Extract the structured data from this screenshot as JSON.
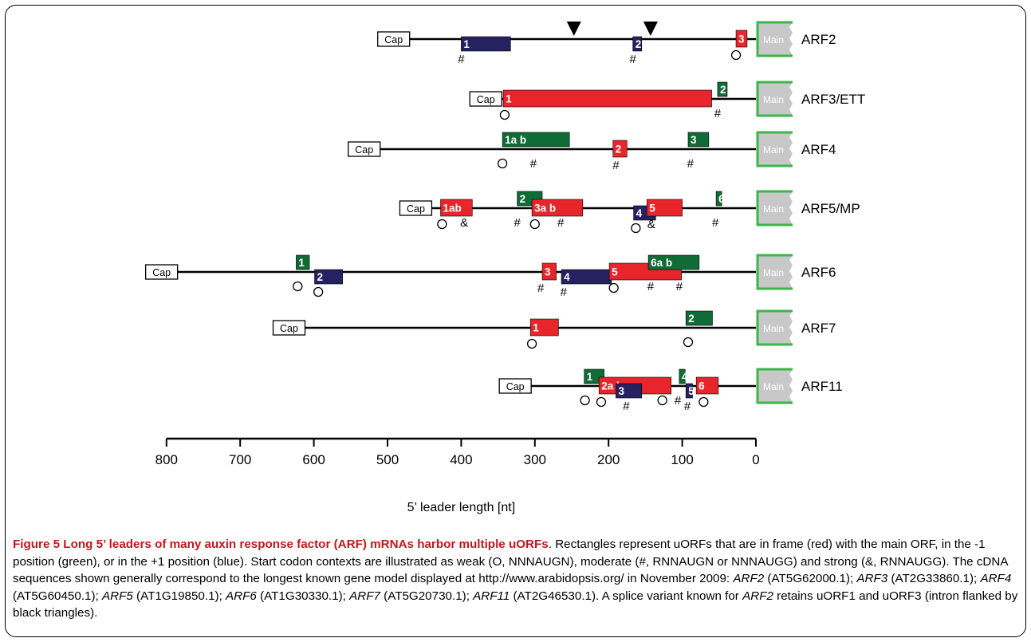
{
  "axis": {
    "ticks": [
      800,
      700,
      600,
      500,
      400,
      300,
      200,
      100,
      0
    ],
    "label": "5’ leader length [nt]",
    "range": [
      800,
      0
    ]
  },
  "cap_label": "Cap",
  "main_label": "Main",
  "colors": {
    "in_frame": "#e8252b",
    "minus1": "#106b36",
    "plus1": "#262262",
    "main_border": "#3db54a",
    "main_fill": "#c8c8c8"
  },
  "genes": [
    {
      "name": "ARF2",
      "cap": 470,
      "uorfs": [
        {
          "label": "1",
          "frame": "plus1",
          "start": 400,
          "end": 333,
          "sym": "#",
          "sym_pos": 400
        },
        {
          "label": "2",
          "frame": "plus1",
          "start": 167,
          "end": 155,
          "sym": "#",
          "sym_pos": 167
        },
        {
          "label": "3",
          "frame": "in",
          "start": 27,
          "end": 12,
          "sym": "O",
          "sym_pos": 27
        }
      ],
      "triangles": [
        247,
        143
      ]
    },
    {
      "name": "ARF3/ETT",
      "cap": 345,
      "uorfs": [
        {
          "label": "1",
          "frame": "in",
          "start": 343,
          "end": 60,
          "sym": "O",
          "sym_pos": 341
        },
        {
          "label": "2",
          "frame": "minus1",
          "start": 52,
          "end": 39,
          "sym": "#",
          "sym_pos": 52
        }
      ]
    },
    {
      "name": "ARF4",
      "cap": 510,
      "uorfs": [
        {
          "label": "1a   b",
          "frame": "minus1",
          "start": 344,
          "end": 253,
          "sym": "O",
          "sym_pos": 344
        },
        {
          "label": "2",
          "frame": "in",
          "start": 194,
          "end": 175,
          "sym": "#",
          "sym_pos": 190
        },
        {
          "label": "3",
          "frame": "minus1",
          "start": 92,
          "end": 64,
          "sym": "#",
          "sym_pos": 89
        }
      ],
      "extra_syms": [
        {
          "sym": "#",
          "pos": 302
        }
      ]
    },
    {
      "name": "ARF5/MP",
      "cap": 440,
      "uorfs": [
        {
          "label": "1ab",
          "frame": "in",
          "start": 428,
          "end": 385,
          "sym": "O",
          "sym_pos": 426
        },
        {
          "label": "2",
          "frame": "minus1",
          "start": 324,
          "end": 290,
          "sym": "#",
          "sym_pos": 324
        },
        {
          "label": "3a  b",
          "frame": "in",
          "start": 304,
          "end": 235,
          "sym": "O",
          "sym_pos": 300
        },
        {
          "label": "4",
          "frame": "plus1",
          "start": 166,
          "end": 136,
          "sym": "O",
          "sym_pos": 163
        },
        {
          "label": "5",
          "frame": "in",
          "start": 148,
          "end": 100,
          "sym": "&",
          "sym_pos": 142
        },
        {
          "label": "6",
          "frame": "minus1",
          "start": 54,
          "end": 47,
          "sym": "#",
          "sym_pos": 55
        }
      ],
      "extra_syms": [
        {
          "sym": "&",
          "pos": 396
        },
        {
          "sym": "#",
          "pos": 265
        }
      ]
    },
    {
      "name": "ARF6",
      "cap": 785,
      "uorfs": [
        {
          "label": "1",
          "frame": "minus1",
          "start": 624,
          "end": 606,
          "sym": "O",
          "sym_pos": 622
        },
        {
          "label": "2",
          "frame": "plus1",
          "start": 599,
          "end": 561,
          "sym": "O",
          "sym_pos": 594
        },
        {
          "label": "3",
          "frame": "in",
          "start": 290,
          "end": 271,
          "sym": "#",
          "sym_pos": 292
        },
        {
          "label": "4",
          "frame": "plus1",
          "start": 264,
          "end": 196,
          "sym": "#",
          "sym_pos": 261
        },
        {
          "label": "5",
          "frame": "in",
          "start": 199,
          "end": 101,
          "sym": "O",
          "sym_pos": 193
        },
        {
          "label": "6a   b",
          "frame": "minus1",
          "start": 146,
          "end": 77,
          "sym": "#",
          "sym_pos": 143
        }
      ],
      "extra_syms": [
        {
          "sym": "#",
          "pos": 104
        }
      ]
    },
    {
      "name": "ARF7",
      "cap": 612,
      "uorfs": [
        {
          "label": "1",
          "frame": "in",
          "start": 306,
          "end": 268,
          "sym": "O",
          "sym_pos": 304
        },
        {
          "label": "2",
          "frame": "minus1",
          "start": 95,
          "end": 59,
          "sym": "O",
          "sym_pos": 92
        }
      ]
    },
    {
      "name": "ARF11",
      "cap": 305,
      "uorfs": [
        {
          "label": "1",
          "frame": "minus1",
          "start": 233,
          "end": 206,
          "sym": "O",
          "sym_pos": 232
        },
        {
          "label": "2a             b",
          "frame": "in",
          "start": 213,
          "end": 115,
          "sym": "O",
          "sym_pos": 210
        },
        {
          "label": "3",
          "frame": "plus1",
          "start": 190,
          "end": 155,
          "sym": "#",
          "sym_pos": 176
        },
        {
          "label": "4",
          "frame": "minus1",
          "start": 104,
          "end": 96,
          "sym": "#",
          "sym_pos": 106
        },
        {
          "label": "5",
          "frame": "plus1",
          "start": 95,
          "end": 86,
          "sym": "#",
          "sym_pos": 93
        },
        {
          "label": "6",
          "frame": "in",
          "start": 81,
          "end": 51,
          "sym": "O",
          "sym_pos": 71
        }
      ],
      "extra_syms": [
        {
          "sym": "O",
          "pos": 127
        }
      ]
    }
  ],
  "caption": {
    "title": "Figure 5 Long 5’ leaders of many auxin response factor (ARF) mRNAs harbor multiple uORFs",
    "text1": ". Rectangles represent uORFs that are in frame (red) with the main ORF, in the -1 position (green), or in the +1 position (blue). Start codon contexts are illustrated as weak (O, NNNAUGN), moderate (#, RNNAUGN or NNNAUGG) and strong (&, RNNAUGG). The cDNA sequences shown generally correspond to the longest known gene model displayed at http://www.arabidopsis.org/  in November 2009: ",
    "g2": "ARF2",
    "a2": " (AT5G62000.1); ",
    "g3": "ARF3",
    "a3": " (AT2G33860.1); ",
    "g4": "ARF4",
    "a4": " (AT5G60450.1); ",
    "g5": "ARF5",
    "a5": " (AT1G19850.1); ",
    "g6": "ARF6",
    "a6": " (AT1G30330.1); ",
    "g7": "ARF7",
    "a7": " (AT5G20730.1); ",
    "g11": "ARF11",
    "a11": " (AT2G46530.1). A splice variant known for ",
    "g2b": "ARF2",
    "a2b": " retains uORF1 and uORF3 (intron flanked by black triangles)."
  }
}
